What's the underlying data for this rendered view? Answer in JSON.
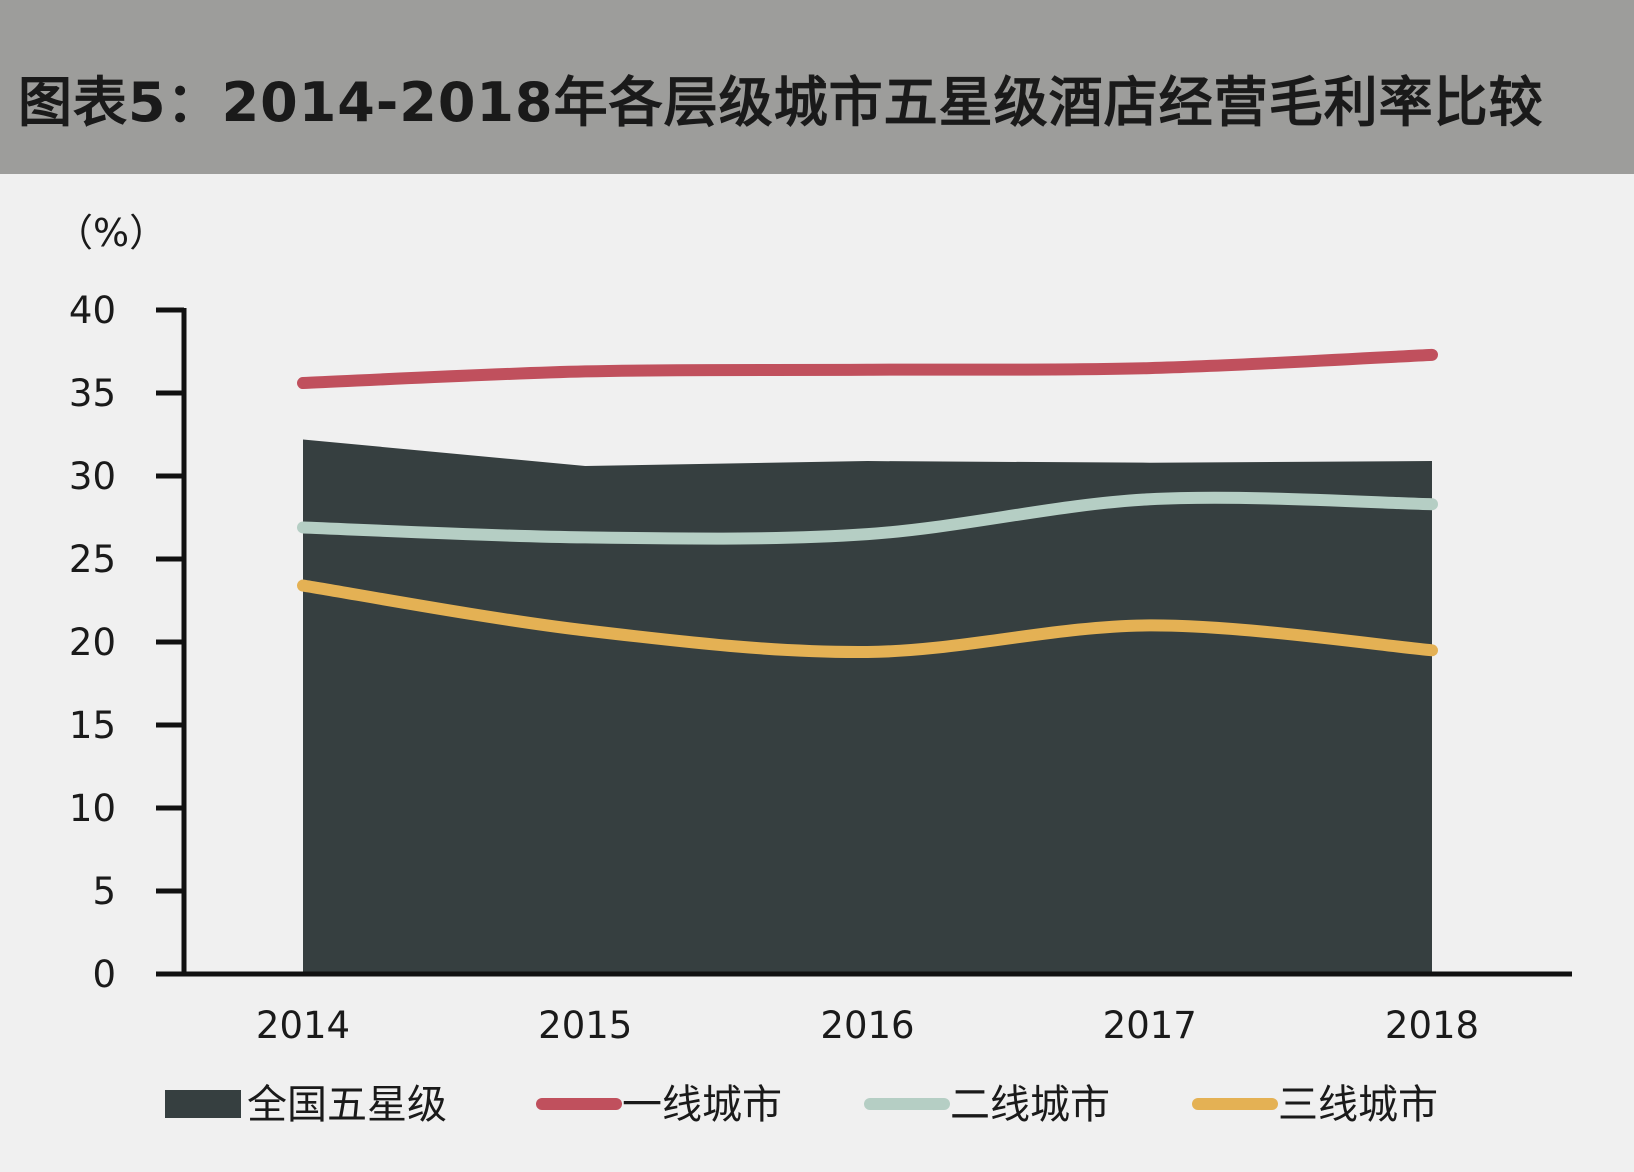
{
  "title": "图表5：2014-2018年各层级城市五星级酒店经营毛利率比较",
  "chart_data": {
    "type": "area",
    "title": "图表5：2014-2018年各层级城市五星级酒店经营毛利率比较",
    "unit_label": "（%）",
    "categories": [
      "2014",
      "2015",
      "2016",
      "2017",
      "2018"
    ],
    "ylim": [
      0,
      40
    ],
    "yticks": [
      0,
      5,
      10,
      15,
      20,
      25,
      30,
      35,
      40
    ],
    "grid": false,
    "legend_position": "bottom",
    "series": [
      {
        "name": "全国五星级",
        "kind": "area",
        "color": "#363f40",
        "values": [
          32.2,
          30.6,
          30.9,
          30.8,
          30.9
        ]
      },
      {
        "name": "一线城市",
        "kind": "line",
        "color": "#c0505d",
        "values": [
          35.6,
          36.3,
          36.4,
          36.5,
          37.3
        ]
      },
      {
        "name": "二线城市",
        "kind": "line",
        "color": "#b5cec4",
        "values": [
          26.9,
          26.3,
          26.5,
          28.6,
          28.3
        ]
      },
      {
        "name": "三线城市",
        "kind": "line",
        "color": "#e4b154",
        "values": [
          23.4,
          20.7,
          19.4,
          21.0,
          19.5
        ]
      }
    ]
  }
}
